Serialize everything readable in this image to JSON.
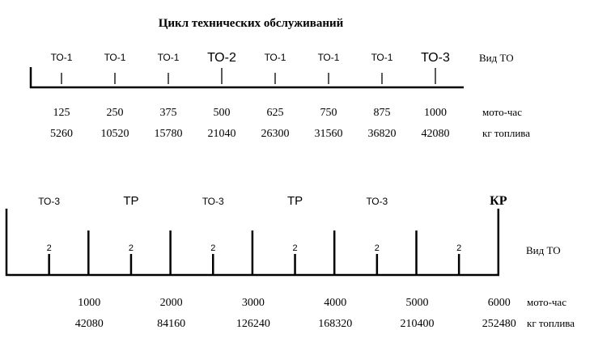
{
  "title": "Цикл технических обслуживаний",
  "top": {
    "labels": [
      "ТО-1",
      "ТО-1",
      "ТО-1",
      "ТО-2",
      "ТО-1",
      "ТО-1",
      "ТО-1",
      "ТО-3"
    ],
    "major": [
      false,
      false,
      false,
      true,
      false,
      false,
      false,
      true
    ],
    "right_label": "Вид ТО",
    "moto": [
      "125",
      "250",
      "375",
      "500",
      "625",
      "750",
      "875",
      "1000"
    ],
    "moto_label": "мото-час",
    "fuel": [
      "5260",
      "10520",
      "15780",
      "21040",
      "26300",
      "31560",
      "36820",
      "42080"
    ],
    "fuel_label": "кг топлива"
  },
  "bottom": {
    "section_labels": [
      "ТО-3",
      "ТР",
      "ТО-3",
      "ТР",
      "ТО-3",
      "КР"
    ],
    "small_tick_label": "2",
    "right_label": "Вид ТО",
    "moto": [
      "1000",
      "2000",
      "3000",
      "4000",
      "5000",
      "6000"
    ],
    "moto_label": "мото-час",
    "fuel": [
      "42080",
      "84160",
      "126240",
      "168320",
      "210400",
      "252480"
    ],
    "fuel_label": "кг топлива"
  }
}
